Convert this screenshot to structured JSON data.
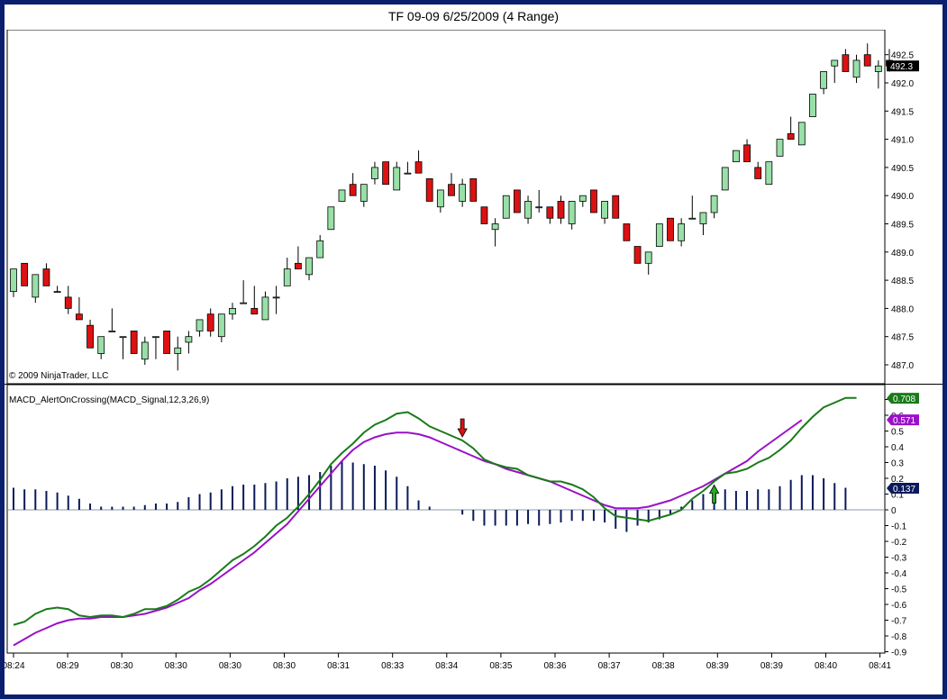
{
  "window": {
    "title": "TF 09-09  6/25/2009 (4 Range)"
  },
  "copyright": "© 2009 NinjaTrader, LLC",
  "colors": {
    "up_candle": "#98e0a8",
    "down_candle": "#dd1111",
    "macd_line": "#1a7a1a",
    "signal_line": "#9a10c8",
    "histogram": "#0a1a5a",
    "axis": "#000000",
    "background": "#ffffff"
  },
  "chart_data": [
    {
      "type": "candlestick",
      "title": "",
      "ylim": [
        486.8,
        492.8
      ],
      "y_ticks": [
        "487.0",
        "487.5",
        "488.0",
        "488.5",
        "489.0",
        "489.5",
        "490.0",
        "490.5",
        "491.0",
        "491.5",
        "492.0",
        "492.5"
      ],
      "last_price_label": "492.3",
      "candles": [
        {
          "o": 488.3,
          "h": 488.7,
          "l": 488.2,
          "c": 488.7
        },
        {
          "o": 488.8,
          "h": 488.8,
          "l": 488.4,
          "c": 488.4
        },
        {
          "o": 488.2,
          "h": 488.6,
          "l": 488.1,
          "c": 488.6
        },
        {
          "o": 488.7,
          "h": 488.8,
          "l": 488.4,
          "c": 488.4
        },
        {
          "o": 488.3,
          "h": 488.4,
          "l": 488.3,
          "c": 488.3
        },
        {
          "o": 488.2,
          "h": 488.4,
          "l": 487.9,
          "c": 488.0
        },
        {
          "o": 487.9,
          "h": 488.2,
          "l": 487.8,
          "c": 487.8
        },
        {
          "o": 487.7,
          "h": 487.8,
          "l": 487.3,
          "c": 487.3
        },
        {
          "o": 487.2,
          "h": 487.5,
          "l": 487.1,
          "c": 487.5
        },
        {
          "o": 487.6,
          "h": 488.0,
          "l": 487.6,
          "c": 487.6
        },
        {
          "o": 487.5,
          "h": 487.5,
          "l": 487.1,
          "c": 487.5
        },
        {
          "o": 487.6,
          "h": 487.6,
          "l": 487.2,
          "c": 487.2
        },
        {
          "o": 487.1,
          "h": 487.5,
          "l": 487.0,
          "c": 487.4
        },
        {
          "o": 487.5,
          "h": 487.5,
          "l": 487.1,
          "c": 487.5
        },
        {
          "o": 487.6,
          "h": 487.6,
          "l": 487.2,
          "c": 487.2
        },
        {
          "o": 487.2,
          "h": 487.5,
          "l": 486.9,
          "c": 487.3
        },
        {
          "o": 487.4,
          "h": 487.6,
          "l": 487.2,
          "c": 487.5
        },
        {
          "o": 487.6,
          "h": 487.8,
          "l": 487.5,
          "c": 487.8
        },
        {
          "o": 487.9,
          "h": 488.0,
          "l": 487.5,
          "c": 487.6
        },
        {
          "o": 487.5,
          "h": 487.9,
          "l": 487.4,
          "c": 487.9
        },
        {
          "o": 487.9,
          "h": 488.1,
          "l": 487.8,
          "c": 488.0
        },
        {
          "o": 488.1,
          "h": 488.5,
          "l": 488.1,
          "c": 488.1
        },
        {
          "o": 488.0,
          "h": 488.4,
          "l": 487.9,
          "c": 487.9
        },
        {
          "o": 487.8,
          "h": 488.3,
          "l": 487.8,
          "c": 488.2
        },
        {
          "o": 488.2,
          "h": 488.4,
          "l": 487.9,
          "c": 488.2
        },
        {
          "o": 488.4,
          "h": 488.9,
          "l": 488.4,
          "c": 488.7
        },
        {
          "o": 488.8,
          "h": 489.1,
          "l": 488.7,
          "c": 488.7
        },
        {
          "o": 488.6,
          "h": 488.9,
          "l": 488.5,
          "c": 488.9
        },
        {
          "o": 488.9,
          "h": 489.3,
          "l": 488.9,
          "c": 489.2
        },
        {
          "o": 489.4,
          "h": 489.8,
          "l": 489.4,
          "c": 489.8
        },
        {
          "o": 489.9,
          "h": 490.1,
          "l": 489.9,
          "c": 490.1
        },
        {
          "o": 490.2,
          "h": 490.4,
          "l": 490.0,
          "c": 490.0
        },
        {
          "o": 489.9,
          "h": 490.2,
          "l": 489.8,
          "c": 490.2
        },
        {
          "o": 490.3,
          "h": 490.6,
          "l": 490.2,
          "c": 490.5
        },
        {
          "o": 490.6,
          "h": 490.6,
          "l": 490.2,
          "c": 490.2
        },
        {
          "o": 490.1,
          "h": 490.6,
          "l": 490.1,
          "c": 490.5
        },
        {
          "o": 490.4,
          "h": 490.6,
          "l": 490.4,
          "c": 490.4
        },
        {
          "o": 490.6,
          "h": 490.8,
          "l": 490.4,
          "c": 490.4
        },
        {
          "o": 490.3,
          "h": 490.3,
          "l": 489.9,
          "c": 489.9
        },
        {
          "o": 489.8,
          "h": 490.1,
          "l": 489.7,
          "c": 490.1
        },
        {
          "o": 490.2,
          "h": 490.4,
          "l": 490.0,
          "c": 490.0
        },
        {
          "o": 489.9,
          "h": 490.3,
          "l": 489.8,
          "c": 490.2
        },
        {
          "o": 490.3,
          "h": 490.3,
          "l": 489.9,
          "c": 489.9
        },
        {
          "o": 489.8,
          "h": 489.8,
          "l": 489.5,
          "c": 489.5
        },
        {
          "o": 489.4,
          "h": 489.6,
          "l": 489.1,
          "c": 489.5
        },
        {
          "o": 489.6,
          "h": 490.0,
          "l": 489.6,
          "c": 490.0
        },
        {
          "o": 490.1,
          "h": 490.1,
          "l": 489.7,
          "c": 489.7
        },
        {
          "o": 489.6,
          "h": 490.0,
          "l": 489.5,
          "c": 489.9
        },
        {
          "o": 489.8,
          "h": 490.1,
          "l": 489.7,
          "c": 489.8
        },
        {
          "o": 489.8,
          "h": 489.8,
          "l": 489.5,
          "c": 489.6
        },
        {
          "o": 489.9,
          "h": 490.0,
          "l": 489.5,
          "c": 489.6
        },
        {
          "o": 489.5,
          "h": 489.9,
          "l": 489.4,
          "c": 489.9
        },
        {
          "o": 489.9,
          "h": 490.0,
          "l": 489.8,
          "c": 490.0
        },
        {
          "o": 490.1,
          "h": 490.1,
          "l": 489.7,
          "c": 489.7
        },
        {
          "o": 489.6,
          "h": 489.9,
          "l": 489.5,
          "c": 489.9
        },
        {
          "o": 490.0,
          "h": 490.0,
          "l": 489.6,
          "c": 489.6
        },
        {
          "o": 489.5,
          "h": 489.5,
          "l": 489.2,
          "c": 489.2
        },
        {
          "o": 489.1,
          "h": 489.1,
          "l": 488.8,
          "c": 488.8
        },
        {
          "o": 488.8,
          "h": 489.0,
          "l": 488.6,
          "c": 489.0
        },
        {
          "o": 489.1,
          "h": 489.5,
          "l": 489.1,
          "c": 489.5
        },
        {
          "o": 489.6,
          "h": 489.6,
          "l": 489.2,
          "c": 489.2
        },
        {
          "o": 489.2,
          "h": 489.6,
          "l": 489.1,
          "c": 489.5
        },
        {
          "o": 489.6,
          "h": 490.0,
          "l": 489.6,
          "c": 489.6
        },
        {
          "o": 489.5,
          "h": 489.7,
          "l": 489.3,
          "c": 489.7
        },
        {
          "o": 489.7,
          "h": 490.0,
          "l": 489.6,
          "c": 490.0
        },
        {
          "o": 490.1,
          "h": 490.5,
          "l": 490.1,
          "c": 490.5
        },
        {
          "o": 490.6,
          "h": 490.8,
          "l": 490.6,
          "c": 490.8
        },
        {
          "o": 490.9,
          "h": 491.0,
          "l": 490.6,
          "c": 490.6
        },
        {
          "o": 490.5,
          "h": 490.6,
          "l": 490.3,
          "c": 490.3
        },
        {
          "o": 490.2,
          "h": 490.6,
          "l": 490.2,
          "c": 490.6
        },
        {
          "o": 490.7,
          "h": 491.0,
          "l": 490.7,
          "c": 491.0
        },
        {
          "o": 491.1,
          "h": 491.4,
          "l": 491.0,
          "c": 491.0
        },
        {
          "o": 490.9,
          "h": 491.3,
          "l": 490.9,
          "c": 491.3
        },
        {
          "o": 491.4,
          "h": 491.8,
          "l": 491.4,
          "c": 491.8
        },
        {
          "o": 491.9,
          "h": 492.2,
          "l": 491.8,
          "c": 492.2
        },
        {
          "o": 492.3,
          "h": 492.4,
          "l": 492.0,
          "c": 492.4
        },
        {
          "o": 492.5,
          "h": 492.6,
          "l": 492.2,
          "c": 492.2
        },
        {
          "o": 492.1,
          "h": 492.5,
          "l": 492.0,
          "c": 492.4
        },
        {
          "o": 492.5,
          "h": 492.7,
          "l": 492.3,
          "c": 492.3
        },
        {
          "o": 492.2,
          "h": 492.4,
          "l": 491.9,
          "c": 492.3
        },
        {
          "o": 492.4,
          "h": 492.6,
          "l": 492.2,
          "c": 492.3
        }
      ]
    },
    {
      "type": "line",
      "indicator_label": "MACD_AlertOnCrossing(MACD_Signal,12,3,26,9)",
      "ylim": [
        -0.9,
        0.72
      ],
      "y_ticks": [
        "0.7",
        "0.6",
        "0.5",
        "0.4",
        "0.3",
        "0.2",
        "0.1",
        "0",
        "-0.1",
        "-0.2",
        "-0.3",
        "-0.4",
        "-0.5",
        "-0.6",
        "-0.7",
        "-0.8",
        "-0.9"
      ],
      "value_labels": {
        "macd": "0.708",
        "signal": "0.571",
        "histogram": "0.137"
      },
      "macd": [
        -0.73,
        -0.71,
        -0.66,
        -0.63,
        -0.62,
        -0.63,
        -0.67,
        -0.68,
        -0.67,
        -0.67,
        -0.68,
        -0.66,
        -0.63,
        -0.63,
        -0.61,
        -0.57,
        -0.52,
        -0.49,
        -0.44,
        -0.38,
        -0.32,
        -0.28,
        -0.23,
        -0.17,
        -0.1,
        -0.05,
        0.02,
        0.1,
        0.19,
        0.29,
        0.36,
        0.42,
        0.49,
        0.54,
        0.57,
        0.61,
        0.62,
        0.58,
        0.53,
        0.5,
        0.47,
        0.44,
        0.39,
        0.32,
        0.29,
        0.27,
        0.26,
        0.22,
        0.2,
        0.18,
        0.18,
        0.16,
        0.13,
        0.08,
        0.01,
        -0.04,
        -0.05,
        -0.06,
        -0.07,
        -0.05,
        -0.03,
        0.0,
        0.07,
        0.12,
        0.18,
        0.23,
        0.24,
        0.26,
        0.3,
        0.33,
        0.38,
        0.44,
        0.52,
        0.59,
        0.65,
        0.68,
        0.71,
        0.71
      ],
      "signal": [
        -0.86,
        -0.82,
        -0.78,
        -0.75,
        -0.72,
        -0.7,
        -0.69,
        -0.69,
        -0.68,
        -0.68,
        -0.68,
        -0.67,
        -0.66,
        -0.64,
        -0.62,
        -0.59,
        -0.56,
        -0.51,
        -0.47,
        -0.42,
        -0.37,
        -0.32,
        -0.27,
        -0.21,
        -0.15,
        -0.09,
        -0.01,
        0.07,
        0.15,
        0.23,
        0.31,
        0.38,
        0.43,
        0.46,
        0.48,
        0.49,
        0.49,
        0.48,
        0.46,
        0.43,
        0.4,
        0.37,
        0.34,
        0.31,
        0.29,
        0.26,
        0.24,
        0.22,
        0.2,
        0.18,
        0.15,
        0.12,
        0.09,
        0.06,
        0.03,
        0.01,
        0.01,
        0.01,
        0.02,
        0.04,
        0.06,
        0.09,
        0.12,
        0.15,
        0.19,
        0.23,
        0.27,
        0.31,
        0.37,
        0.42,
        0.47,
        0.52,
        0.57
      ],
      "histogram": [
        0.14,
        0.13,
        0.13,
        0.12,
        0.11,
        0.09,
        0.07,
        0.04,
        0.02,
        0.02,
        0.02,
        0.02,
        0.03,
        0.04,
        0.04,
        0.05,
        0.08,
        0.1,
        0.11,
        0.13,
        0.15,
        0.16,
        0.16,
        0.17,
        0.18,
        0.2,
        0.21,
        0.22,
        0.24,
        0.28,
        0.31,
        0.3,
        0.29,
        0.28,
        0.25,
        0.21,
        0.15,
        0.06,
        0.02,
        0,
        0,
        -0.03,
        -0.07,
        -0.1,
        -0.1,
        -0.1,
        -0.1,
        -0.09,
        -0.1,
        -0.09,
        -0.08,
        -0.07,
        -0.07,
        -0.07,
        -0.08,
        -0.12,
        -0.14,
        -0.1,
        -0.08,
        -0.06,
        -0.03,
        0.02,
        0.06,
        0.1,
        0.13,
        0.13,
        0.12,
        0.12,
        0.13,
        0.13,
        0.15,
        0.19,
        0.22,
        0.22,
        0.2,
        0.17,
        0.14
      ],
      "alerts": [
        {
          "index": 41,
          "dir": "down"
        },
        {
          "index": 64,
          "dir": "up"
        }
      ]
    }
  ],
  "x_axis": {
    "labels": [
      "08:24",
      "08:29",
      "08:30",
      "08:30",
      "08:30",
      "08:30",
      "08:31",
      "08:33",
      "08:34",
      "08:35",
      "08:36",
      "08:37",
      "08:38",
      "08:39",
      "08:39",
      "08:40",
      "08:41"
    ]
  }
}
